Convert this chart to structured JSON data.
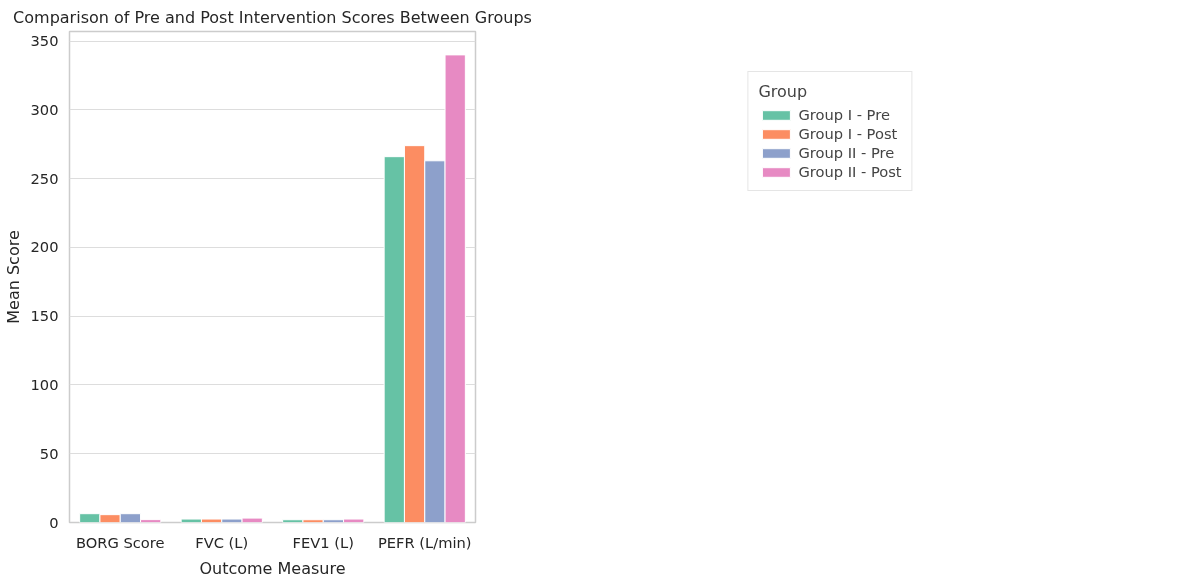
{
  "chart_data": {
    "type": "bar",
    "title": "Comparison of Pre and Post Intervention Scores Between Groups",
    "xlabel": "Outcome Measure",
    "ylabel": "Mean Score",
    "legend_title": "Group",
    "categories": [
      "BORG Score",
      "FVC (L)",
      "FEV1 (L)",
      "PEFR (L/min)"
    ],
    "series": [
      {
        "name": "Group I - Pre",
        "color": "#66c2a5",
        "values": [
          6.4,
          2.5,
          2.0,
          266
        ]
      },
      {
        "name": "Group I - Post",
        "color": "#fc8d62",
        "values": [
          5.7,
          2.5,
          2.0,
          274
        ]
      },
      {
        "name": "Group II - Pre",
        "color": "#8da0cb",
        "values": [
          6.4,
          2.5,
          2.0,
          263
        ]
      },
      {
        "name": "Group II - Post",
        "color": "#e78ac3",
        "values": [
          2.1,
          3.2,
          2.5,
          340
        ]
      }
    ],
    "ylim": [
      0,
      357
    ],
    "yticks": [
      0,
      50,
      100,
      150,
      200,
      250,
      300,
      350
    ],
    "grid": "y",
    "legend": "top right"
  }
}
